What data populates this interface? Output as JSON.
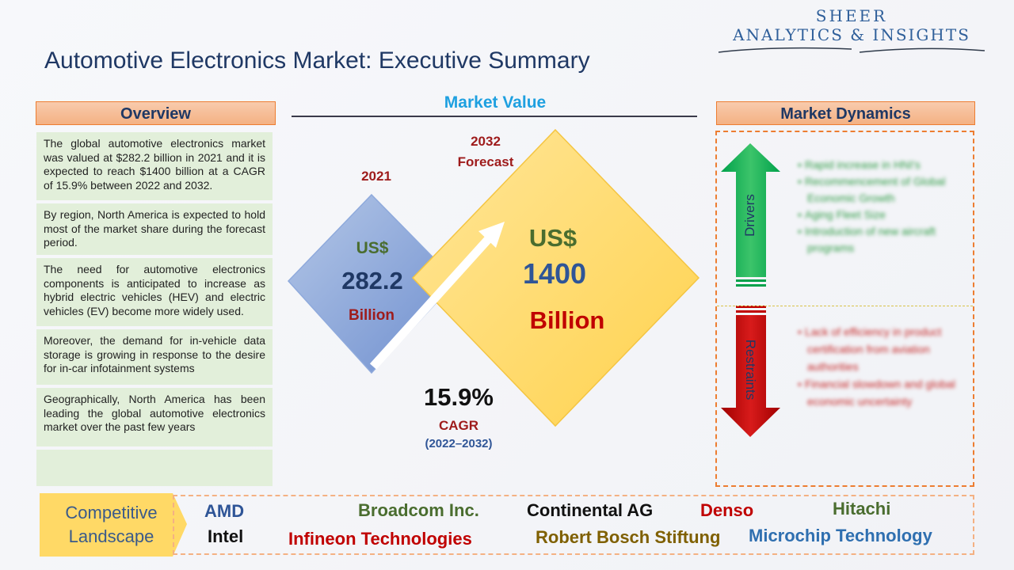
{
  "brand": {
    "line1": "SHEER",
    "line2": "ANALYTICS & INSIGHTS"
  },
  "title": "Automotive Electronics Market: Executive Summary",
  "overview": {
    "header": "Overview",
    "paragraphs": [
      "The global automotive electronics market was valued at $282.2 billion in 2021 and it is expected to reach $1400 billion at a CAGR of 15.9% between 2022 and 2032.",
      "By region, North America is expected to hold most of the market share during the forecast period.",
      "The need for automotive electronics components is anticipated to increase as hybrid electric vehicles (HEV) and electric vehicles (EV) become more widely used.",
      "Moreover, the demand for in-vehicle data storage is growing in response to the desire for in-car infotainment systems",
      "Geographically, North America has been leading the global automotive electronics market over the past few years"
    ]
  },
  "market_value": {
    "title": "Market Value",
    "y2021": {
      "year": "2021",
      "currency": "US$",
      "value": "282.2",
      "unit": "Billion"
    },
    "y2032": {
      "year": "2032",
      "sub": "Forecast",
      "currency": "US$",
      "value": "1400",
      "unit": "Billion"
    },
    "cagr": {
      "value": "15.9%",
      "label": "CAGR",
      "period": "(2022–2032)"
    }
  },
  "dynamics": {
    "header": "Market Dynamics",
    "drivers_label": "Drivers",
    "restraints_label": "Restraints",
    "drivers": [
      "Rapid increase in HNI's",
      "Recommencement of Global Economic Growth",
      "Aging Fleet Size",
      "Introduction of new aircraft programs"
    ],
    "restraints": [
      "Lack of efficiency in product certification from aviation authorities",
      "Financial slowdown and global economic uncertainty"
    ]
  },
  "competitive": {
    "label_line1": "Competitive",
    "label_line2": "Landscape",
    "companies": [
      "AMD",
      "Intel",
      "Broadcom Inc.",
      "Infineon Technologies",
      "Continental AG",
      "Robert Bosch Stiftung",
      "Denso",
      "Hitachi",
      "Microchip Technology"
    ]
  },
  "colors": {
    "navy": "#1f3864",
    "orange": "#ed7d31",
    "green_box": "#e2efda",
    "cyan": "#1ea0e0",
    "diamond_blue": "#8ea9db",
    "diamond_yellow": "#ffd966",
    "driver_green": "#00b050",
    "restraint_red": "#c00000"
  }
}
